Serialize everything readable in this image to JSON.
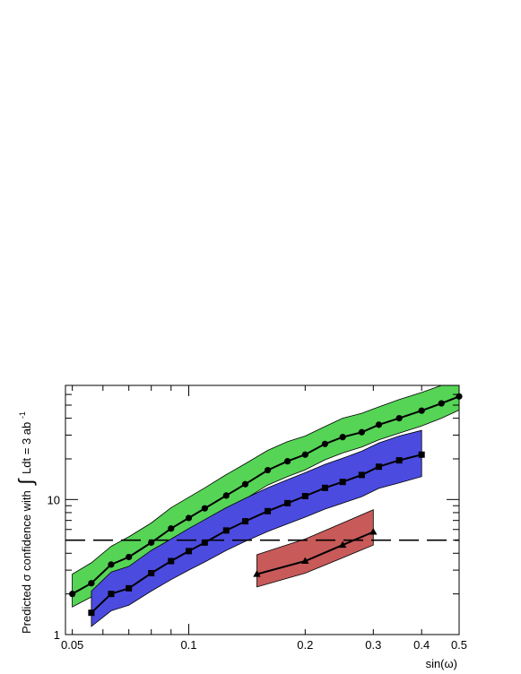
{
  "chart_data": {
    "type": "line",
    "title": "",
    "xlabel": "sin(ω)",
    "ylabel": {
      "prefix": "Predicted σ confidence with",
      "integral": "∫",
      "expr": "Ldt = 3 ab",
      "superscript": "-1"
    },
    "x_scale": "log",
    "y_scale": "log",
    "xlim": [
      0.048,
      0.5
    ],
    "ylim": [
      1,
      70
    ],
    "grid": false,
    "x_ticks": [
      {
        "value": 0.05,
        "label": "0.05"
      },
      {
        "value": 0.1,
        "label": "0.1"
      },
      {
        "value": 0.2,
        "label": "0.2"
      },
      {
        "value": 0.3,
        "label": "0.3"
      },
      {
        "value": 0.4,
        "label": "0.4"
      },
      {
        "value": 0.5,
        "label": "0.5"
      }
    ],
    "y_ticks": [
      {
        "value": 1,
        "label": "1"
      },
      {
        "value": 10,
        "label": "10"
      }
    ],
    "reference_line": {
      "y": 5,
      "style": "dashed"
    },
    "series": [
      {
        "marker": "circle",
        "band_color": "#55d455",
        "x": [
          0.05,
          0.056,
          0.063,
          0.07,
          0.08,
          0.09,
          0.1,
          0.11,
          0.125,
          0.14,
          0.16,
          0.18,
          0.2,
          0.225,
          0.25,
          0.28,
          0.31,
          0.35,
          0.4,
          0.45,
          0.5
        ],
        "y": [
          2.0,
          2.4,
          3.3,
          3.75,
          4.8,
          6.1,
          7.3,
          8.6,
          10.7,
          13.0,
          16.5,
          19.2,
          21.5,
          25.8,
          29.0,
          31.5,
          35.8,
          40.0,
          45.5,
          51.5,
          58.0
        ],
        "band_upper": [
          2.8,
          3.4,
          4.5,
          5.3,
          6.7,
          8.7,
          10.4,
          12.2,
          15.3,
          18.4,
          23.1,
          26.8,
          29.5,
          34.7,
          40.0,
          43.5,
          48.5,
          55.0,
          62.0,
          70.0,
          70.0
        ],
        "band_lower": [
          1.6,
          1.9,
          2.6,
          3.0,
          3.8,
          4.8,
          5.7,
          6.7,
          8.3,
          10.1,
          12.8,
          14.8,
          16.6,
          19.7,
          22.1,
          24.5,
          27.7,
          31.0,
          35.1,
          40.0,
          46.0
        ]
      },
      {
        "marker": "square",
        "band_color": "#4b4be0",
        "x": [
          0.056,
          0.063,
          0.07,
          0.08,
          0.09,
          0.1,
          0.11,
          0.125,
          0.14,
          0.16,
          0.18,
          0.2,
          0.225,
          0.25,
          0.28,
          0.31,
          0.35,
          0.4
        ],
        "y": [
          1.45,
          2.0,
          2.2,
          2.85,
          3.5,
          4.15,
          4.8,
          5.9,
          6.9,
          8.2,
          9.4,
          10.6,
          12.2,
          13.5,
          15.2,
          17.5,
          19.5,
          21.5
        ],
        "band_upper": [
          2.1,
          2.9,
          3.2,
          4.2,
          5.1,
          6.1,
          7.1,
          8.7,
          10.2,
          12.2,
          14.0,
          15.8,
          18.2,
          20.2,
          22.8,
          26.2,
          29.5,
          32.5
        ],
        "band_lower": [
          1.15,
          1.5,
          1.65,
          2.1,
          2.55,
          3.0,
          3.45,
          4.2,
          4.9,
          5.8,
          6.6,
          7.4,
          8.5,
          9.4,
          10.5,
          12.1,
          13.3,
          14.8
        ]
      },
      {
        "marker": "triangle",
        "band_color": "#c85a5a",
        "x": [
          0.15,
          0.2,
          0.25,
          0.3
        ],
        "y": [
          2.8,
          3.5,
          4.6,
          5.75
        ],
        "band_upper": [
          3.9,
          5.1,
          6.7,
          8.4
        ],
        "band_lower": [
          2.25,
          2.85,
          3.7,
          4.6
        ]
      }
    ]
  }
}
